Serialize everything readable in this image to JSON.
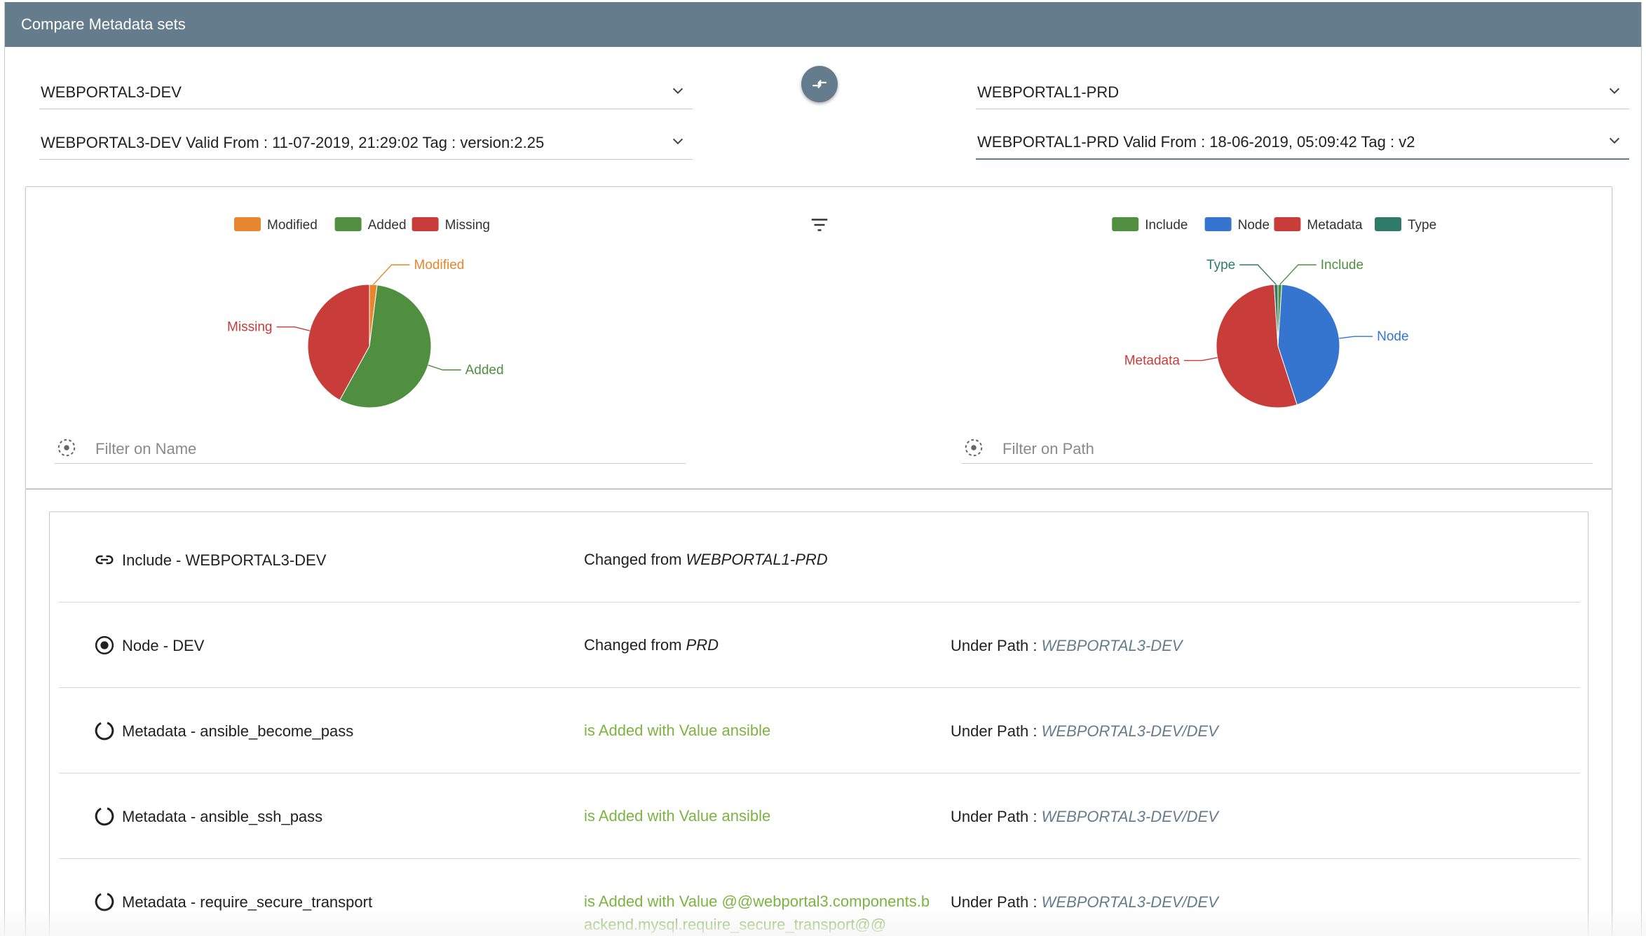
{
  "window": {
    "title": "Compare Metadata sets"
  },
  "left": {
    "environment": "WEBPORTAL3-DEV",
    "version": "WEBPORTAL3-DEV Valid From : 11-07-2019, 21:29:02 Tag : version:2.25",
    "filter_placeholder": "Filter on Name"
  },
  "right": {
    "environment": "WEBPORTAL1-PRD",
    "version": "WEBPORTAL1-PRD Valid From : 18-06-2019, 05:09:42 Tag : v2",
    "filter_placeholder": "Filter on Path"
  },
  "icons": {
    "swap": "swap-icon",
    "filter": "filter-icon",
    "chevron": "chevron-down-icon",
    "include": "link-icon",
    "node": "radio-target-icon",
    "metadata": "loading-circle-icon",
    "filter_field": "target-dashed-icon"
  },
  "chart_data": [
    {
      "type": "pie",
      "legend_placement": "top",
      "labels": [
        "Modified",
        "Added",
        "Missing"
      ],
      "values": [
        2,
        56,
        42
      ],
      "colors": [
        "#e8862d",
        "#4f8f3f",
        "#c83c3a"
      ]
    },
    {
      "type": "pie",
      "legend_placement": "top",
      "legend": [
        "Include",
        "Node",
        "Metadata",
        "Type"
      ],
      "labels": [
        "Include",
        "Node",
        "Metadata",
        "Type"
      ],
      "values": [
        1,
        44,
        54,
        1
      ],
      "colors": [
        "#4f8f3f",
        "#3575d0",
        "#c83c3a",
        "#2f7a68"
      ]
    }
  ],
  "rows": [
    {
      "icon": "link-icon",
      "title": "Include - WEBPORTAL3-DEV",
      "change_prefix": "Changed from ",
      "change_value": "WEBPORTAL1-PRD",
      "path_label": "",
      "path_value": ""
    },
    {
      "icon": "radio-target-icon",
      "title": "Node - DEV",
      "change_prefix": "Changed from ",
      "change_value": "PRD",
      "path_label": "Under Path : ",
      "path_value": "WEBPORTAL3-DEV"
    },
    {
      "icon": "loading-circle-icon",
      "title": "Metadata - ansible_become_pass",
      "added_text": "is Added with Value ansible",
      "path_label": "Under Path : ",
      "path_value": "WEBPORTAL3-DEV/DEV"
    },
    {
      "icon": "loading-circle-icon",
      "title": "Metadata - ansible_ssh_pass",
      "added_text": "is Added with Value ansible",
      "path_label": "Under Path : ",
      "path_value": "WEBPORTAL3-DEV/DEV"
    },
    {
      "icon": "loading-circle-icon",
      "title": "Metadata - require_secure_transport",
      "added_text": "is Added with Value @@webportal3.components.backend.mysql.require_secure_transport@@",
      "path_label": "Under Path : ",
      "path_value": "WEBPORTAL3-DEV/DEV"
    }
  ]
}
